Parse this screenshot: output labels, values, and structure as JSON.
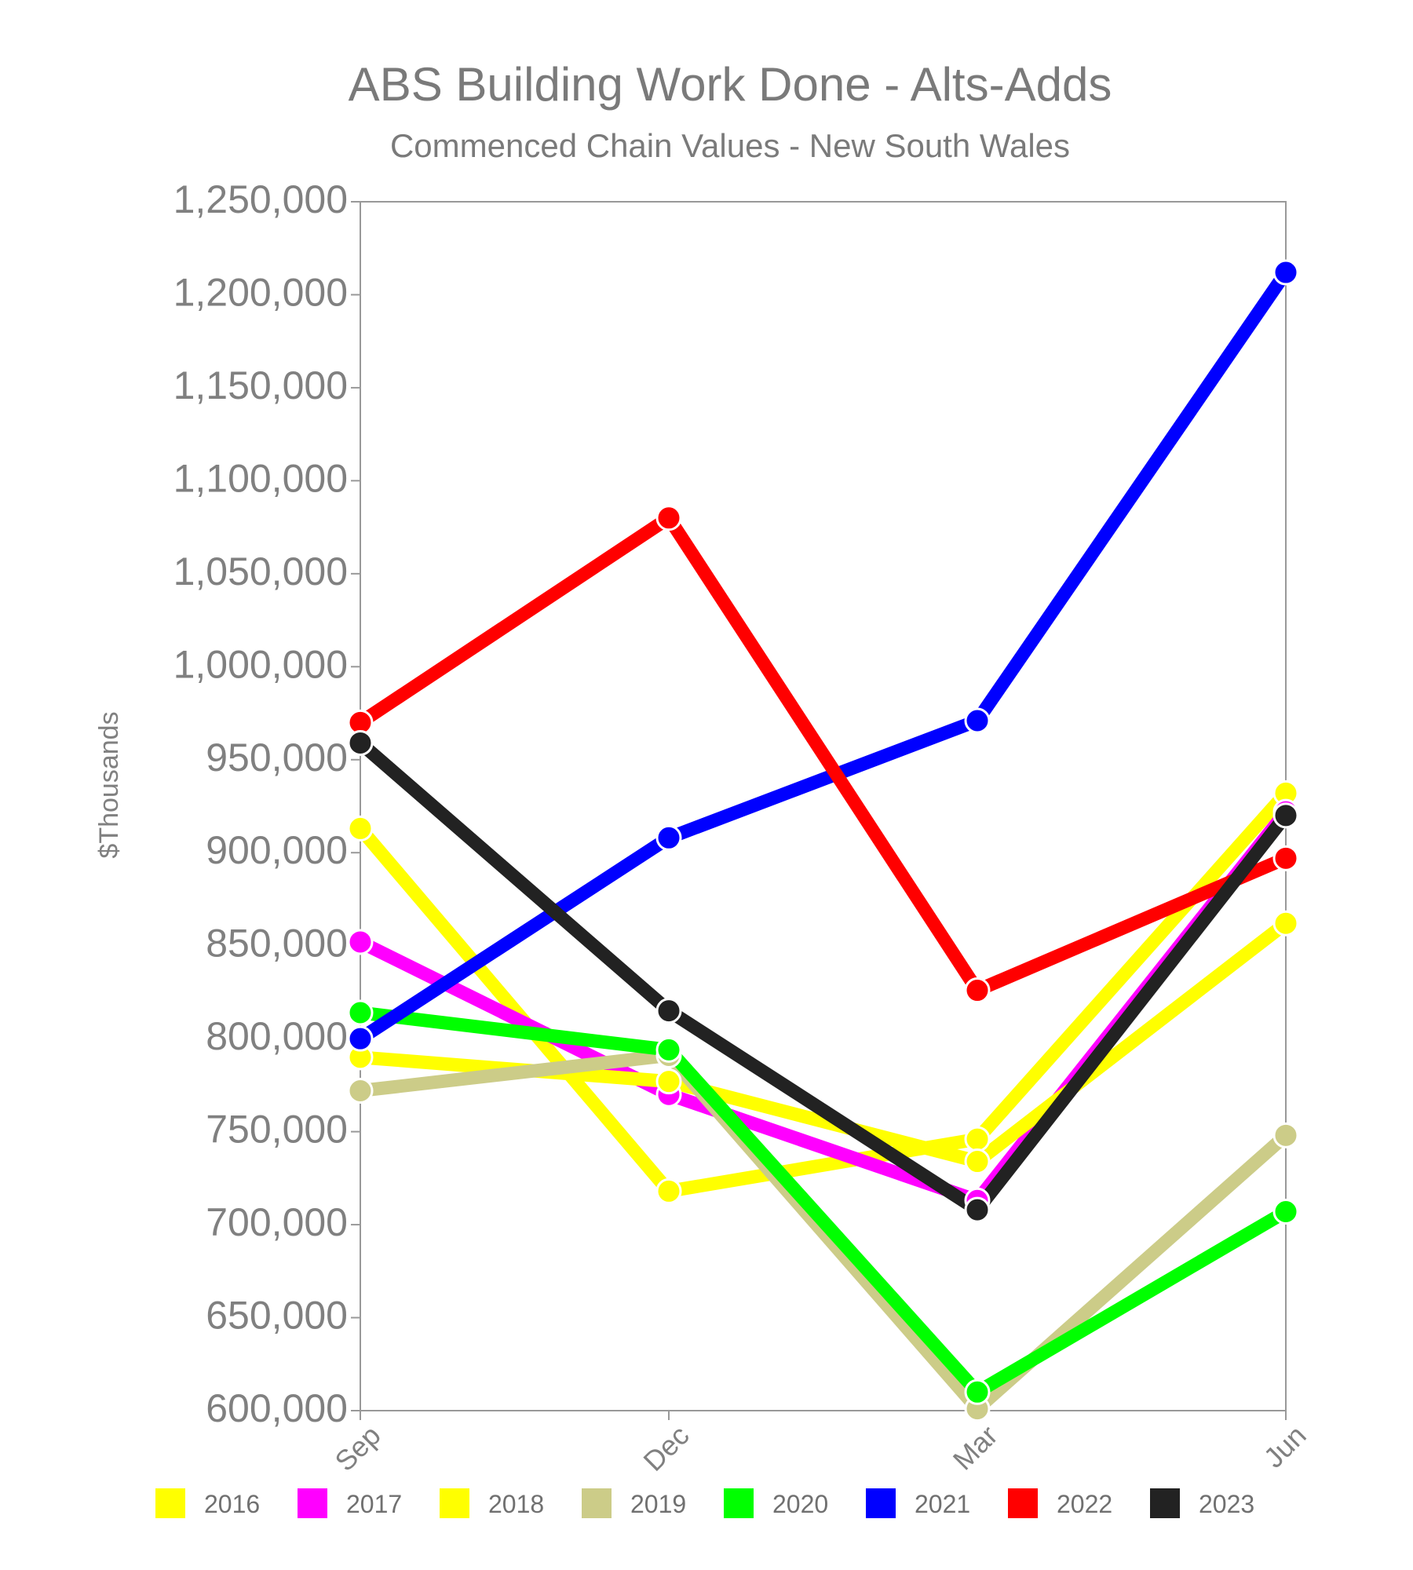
{
  "chart_data": {
    "type": "line",
    "title": "ABS Building Work Done - Alts-Adds",
    "subtitle": "Commenced Chain Values - New South Wales",
    "xlabel": "",
    "ylabel": "$Thousands",
    "categories": [
      "Sep",
      "Dec",
      "Mar",
      "Jun"
    ],
    "ylim": [
      600000,
      1250000
    ],
    "yticks": [
      600000,
      650000,
      700000,
      750000,
      800000,
      850000,
      900000,
      950000,
      1000000,
      1050000,
      1100000,
      1150000,
      1200000,
      1250000
    ],
    "ytick_labels": [
      "600,000",
      "650,000",
      "700,000",
      "750,000",
      "800,000",
      "850,000",
      "900,000",
      "950,000",
      "1,000,000",
      "1,050,000",
      "1,100,000",
      "1,150,000",
      "1,200,000",
      "1,250,000"
    ],
    "grid": false,
    "legend_position": "bottom",
    "series": [
      {
        "name": "2016",
        "color": "#ffff00",
        "values": [
          913000,
          718000,
          746000,
          932000
        ]
      },
      {
        "name": "2017",
        "color": "#ff00ff",
        "values": [
          852000,
          770000,
          713000,
          922000
        ]
      },
      {
        "name": "2018",
        "color": "#ffff00",
        "values": [
          790000,
          777000,
          734000,
          862000
        ]
      },
      {
        "name": "2019",
        "color": "#cccc88",
        "values": [
          772000,
          791000,
          601000,
          748000
        ]
      },
      {
        "name": "2020",
        "color": "#00ff00",
        "values": [
          814000,
          794000,
          610000,
          707000
        ]
      },
      {
        "name": "2021",
        "color": "#0000ff",
        "values": [
          800000,
          908000,
          971000,
          1212000
        ]
      },
      {
        "name": "2022",
        "color": "#ff0000",
        "values": [
          970000,
          1080000,
          826000,
          897000
        ]
      },
      {
        "name": "2023",
        "color": "#222222",
        "values": [
          959000,
          815000,
          708000,
          920000
        ]
      }
    ]
  }
}
